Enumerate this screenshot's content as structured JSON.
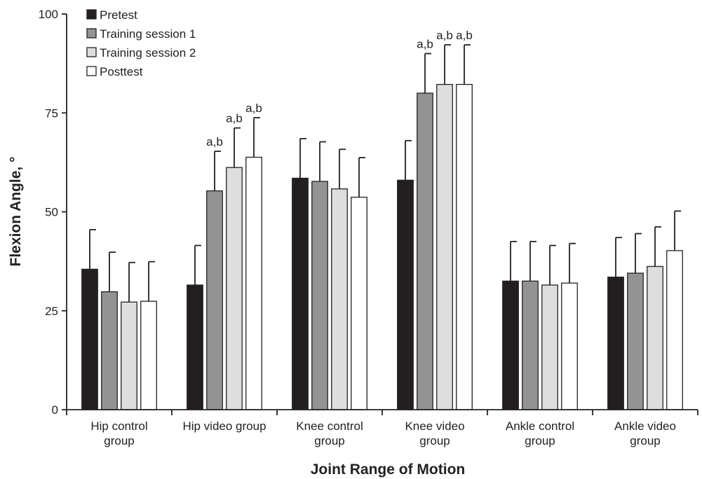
{
  "chart_data": {
    "type": "bar",
    "xlabel": "Joint Range of Motion",
    "ylabel": "Flexion Angle, °",
    "ylim": [
      0,
      100
    ],
    "yticks": [
      0,
      25,
      50,
      75,
      100
    ],
    "grid": false,
    "legend_position": "top-left",
    "categories": [
      [
        "Hip control",
        "group"
      ],
      [
        "Hip video group"
      ],
      [
        "Knee control",
        "group"
      ],
      [
        "Knee video",
        "group"
      ],
      [
        "Ankle control",
        "group"
      ],
      [
        "Ankle video",
        "group"
      ]
    ],
    "series": [
      {
        "name": "Pretest",
        "color": "#231f20",
        "values": [
          35.5,
          31.5,
          58.5,
          58.0,
          32.5,
          33.5
        ],
        "errors": [
          10,
          10,
          10,
          10,
          10,
          10
        ],
        "annotations": [
          "",
          "",
          "",
          "",
          "",
          ""
        ]
      },
      {
        "name": "Training session 1",
        "color": "#939393",
        "values": [
          29.8,
          55.3,
          57.7,
          80.0,
          32.5,
          34.5
        ],
        "errors": [
          10,
          10,
          10,
          10,
          10,
          10
        ],
        "annotations": [
          "",
          "a,b",
          "",
          "a,b",
          "",
          ""
        ]
      },
      {
        "name": "Training session 2",
        "color": "#dedede",
        "values": [
          27.2,
          61.2,
          55.8,
          82.2,
          31.5,
          36.2
        ],
        "errors": [
          10,
          10,
          10,
          10,
          10,
          10
        ],
        "annotations": [
          "",
          "a,b",
          "",
          "a,b",
          "",
          ""
        ]
      },
      {
        "name": "Posttest",
        "color": "#ffffff",
        "values": [
          27.4,
          63.8,
          53.7,
          82.2,
          32.0,
          40.2
        ],
        "errors": [
          10,
          10,
          10,
          10,
          10,
          10
        ],
        "annotations": [
          "",
          "a,b",
          "",
          "a,b",
          "",
          ""
        ]
      }
    ]
  }
}
